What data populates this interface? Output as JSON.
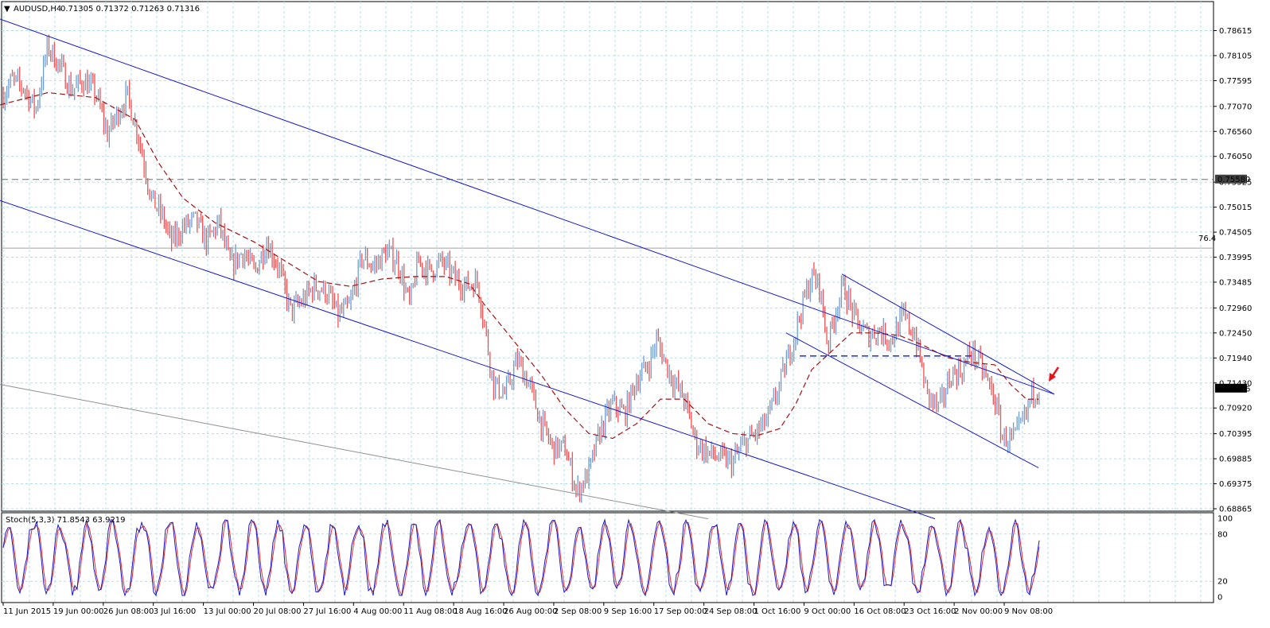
{
  "header": {
    "collapse_glyph": "▼",
    "symbol": "AUDUSD,H4",
    "quote": "0.71305 0.71372 0.71263 0.71316"
  },
  "indicator": {
    "label": "Stoch(5,3,3) 71.8543 63.9219",
    "levels": [
      "100",
      "80",
      "20",
      "0"
    ]
  },
  "colors": {
    "background": "#ffffff",
    "grid": "#b8dce6",
    "bull_candle": "#6f9ad0",
    "bear_candle": "#f05050",
    "channel": "#1a1ac8",
    "moving_average": "#aa1010",
    "stoch_main": "#1a1ac8",
    "stoch_signal": "#e03030",
    "annotation_arrow": "#e8141e"
  },
  "icons": {
    "annotation": "arrow-down-left-icon",
    "menu": "triangle-down-icon"
  },
  "chart_data": {
    "type": "candlestick",
    "symbol": "AUDUSD",
    "timeframe": "H4",
    "last_price": 0.71316,
    "current_price_label": "0.71316",
    "level_label": "0.75580",
    "fib_label": "76.4",
    "horizontal_level": 0.7558,
    "fib_level": 0.7418,
    "ylim": [
      0.68865,
      0.7885
    ],
    "y_ticks": [
      "0.78615",
      "0.78105",
      "0.77595",
      "0.77070",
      "0.76560",
      "0.76050",
      "0.75525",
      "0.75015",
      "0.74505",
      "0.73995",
      "0.73485",
      "0.72960",
      "0.72450",
      "0.71940",
      "0.71430",
      "0.70920",
      "0.70395",
      "0.69885",
      "0.69375",
      "0.68865"
    ],
    "x_ticks": [
      "11 Jun 2015",
      "19 Jun 00:00",
      "26 Jun 08:00",
      "3 Jul 16:00",
      "13 Jul 00:00",
      "20 Jul 08:00",
      "27 Jul 16:00",
      "4 Aug 00:00",
      "11 Aug 08:00",
      "18 Aug 16:00",
      "26 Aug 00:00",
      "2 Sep 08:00",
      "9 Sep 16:00",
      "17 Sep 00:00",
      "24 Sep 08:00",
      "1 Oct 16:00",
      "9 Oct 00:00",
      "16 Oct 08:00",
      "23 Oct 16:00",
      "2 Nov 00:00",
      "9 Nov 08:00"
    ],
    "price_path": [
      [
        0,
        0.772
      ],
      [
        15,
        0.776
      ],
      [
        30,
        0.7745
      ],
      [
        45,
        0.77
      ],
      [
        60,
        0.783
      ],
      [
        75,
        0.779
      ],
      [
        90,
        0.774
      ],
      [
        105,
        0.776
      ],
      [
        120,
        0.7735
      ],
      [
        135,
        0.765
      ],
      [
        150,
        0.77
      ],
      [
        160,
        0.773
      ],
      [
        175,
        0.764
      ],
      [
        190,
        0.752
      ],
      [
        205,
        0.748
      ],
      [
        215,
        0.743
      ],
      [
        230,
        0.746
      ],
      [
        245,
        0.7475
      ],
      [
        260,
        0.743
      ],
      [
        275,
        0.747
      ],
      [
        290,
        0.738
      ],
      [
        305,
        0.741
      ],
      [
        320,
        0.737
      ],
      [
        335,
        0.743
      ],
      [
        350,
        0.738
      ],
      [
        365,
        0.729
      ],
      [
        380,
        0.731
      ],
      [
        395,
        0.734
      ],
      [
        410,
        0.733
      ],
      [
        425,
        0.728
      ],
      [
        440,
        0.73
      ],
      [
        455,
        0.74
      ],
      [
        470,
        0.738
      ],
      [
        485,
        0.741
      ],
      [
        500,
        0.739
      ],
      [
        515,
        0.73
      ],
      [
        525,
        0.739
      ],
      [
        540,
        0.737
      ],
      [
        555,
        0.739
      ],
      [
        570,
        0.736
      ],
      [
        585,
        0.734
      ],
      [
        600,
        0.735
      ],
      [
        610,
        0.725
      ],
      [
        620,
        0.714
      ],
      [
        635,
        0.712
      ],
      [
        650,
        0.719
      ],
      [
        665,
        0.714
      ],
      [
        680,
        0.706
      ],
      [
        695,
        0.701
      ],
      [
        710,
        0.701
      ],
      [
        725,
        0.692
      ],
      [
        740,
        0.696
      ],
      [
        755,
        0.705
      ],
      [
        770,
        0.71
      ],
      [
        785,
        0.708
      ],
      [
        800,
        0.715
      ],
      [
        815,
        0.718
      ],
      [
        825,
        0.723
      ],
      [
        835,
        0.719
      ],
      [
        845,
        0.715
      ],
      [
        860,
        0.711
      ],
      [
        875,
        0.702
      ],
      [
        890,
        0.7
      ],
      [
        905,
        0.699
      ],
      [
        920,
        0.698
      ],
      [
        935,
        0.702
      ],
      [
        950,
        0.704
      ],
      [
        965,
        0.707
      ],
      [
        980,
        0.714
      ],
      [
        995,
        0.722
      ],
      [
        1010,
        0.731
      ],
      [
        1020,
        0.736
      ],
      [
        1030,
        0.734
      ],
      [
        1040,
        0.722
      ],
      [
        1050,
        0.729
      ],
      [
        1060,
        0.734
      ],
      [
        1075,
        0.727
      ],
      [
        1090,
        0.724
      ],
      [
        1105,
        0.725
      ],
      [
        1120,
        0.723
      ],
      [
        1135,
        0.728
      ],
      [
        1150,
        0.724
      ],
      [
        1165,
        0.712
      ],
      [
        1180,
        0.709
      ],
      [
        1195,
        0.716
      ],
      [
        1210,
        0.717
      ],
      [
        1220,
        0.721
      ],
      [
        1235,
        0.717
      ],
      [
        1250,
        0.711
      ],
      [
        1260,
        0.703
      ],
      [
        1275,
        0.703
      ],
      [
        1290,
        0.708
      ],
      [
        1297,
        0.7125
      ],
      [
        1305,
        0.71316
      ]
    ],
    "moving_average": [
      [
        0,
        0.771
      ],
      [
        60,
        0.7735
      ],
      [
        120,
        0.7725
      ],
      [
        170,
        0.768
      ],
      [
        200,
        0.759
      ],
      [
        230,
        0.752
      ],
      [
        270,
        0.747
      ],
      [
        320,
        0.743
      ],
      [
        360,
        0.739
      ],
      [
        400,
        0.735
      ],
      [
        440,
        0.734
      ],
      [
        480,
        0.7355
      ],
      [
        520,
        0.736
      ],
      [
        560,
        0.736
      ],
      [
        590,
        0.7345
      ],
      [
        610,
        0.73
      ],
      [
        640,
        0.724
      ],
      [
        680,
        0.716
      ],
      [
        710,
        0.709
      ],
      [
        740,
        0.704
      ],
      [
        770,
        0.703
      ],
      [
        800,
        0.706
      ],
      [
        830,
        0.711
      ],
      [
        860,
        0.711
      ],
      [
        890,
        0.706
      ],
      [
        920,
        0.704
      ],
      [
        950,
        0.7035
      ],
      [
        980,
        0.705
      ],
      [
        1000,
        0.71
      ],
      [
        1020,
        0.717
      ],
      [
        1040,
        0.72
      ],
      [
        1070,
        0.7245
      ],
      [
        1100,
        0.7245
      ],
      [
        1130,
        0.724
      ],
      [
        1160,
        0.722
      ],
      [
        1190,
        0.7195
      ],
      [
        1220,
        0.7185
      ],
      [
        1250,
        0.718
      ],
      [
        1270,
        0.714
      ],
      [
        1290,
        0.711
      ],
      [
        1305,
        0.711
      ]
    ],
    "stochastic": {
      "main": 71.8543,
      "signal": 63.9219,
      "levels": [
        100,
        80,
        20,
        0
      ]
    },
    "grid": true,
    "channel_lines": [
      {
        "name": "upper-main",
        "p1": [
          0,
          0.7885
        ],
        "p2": [
          1325,
          0.712
        ]
      },
      {
        "name": "lower-main",
        "p1": [
          0,
          0.7515
        ],
        "p2": [
          1175,
          0.6866
        ]
      },
      {
        "name": "upper-small",
        "p1": [
          1058,
          0.7365
        ],
        "p2": [
          1325,
          0.712
        ]
      },
      {
        "name": "lower-small",
        "p1": [
          988,
          0.7245
        ],
        "p2": [
          1305,
          0.697
        ]
      },
      {
        "name": "long-trend",
        "p1": [
          0,
          0.714
        ],
        "p2": [
          890,
          0.6866
        ]
      }
    ],
    "neckline": {
      "x1": 1005,
      "x2": 1225,
      "price": 0.7198
    }
  }
}
